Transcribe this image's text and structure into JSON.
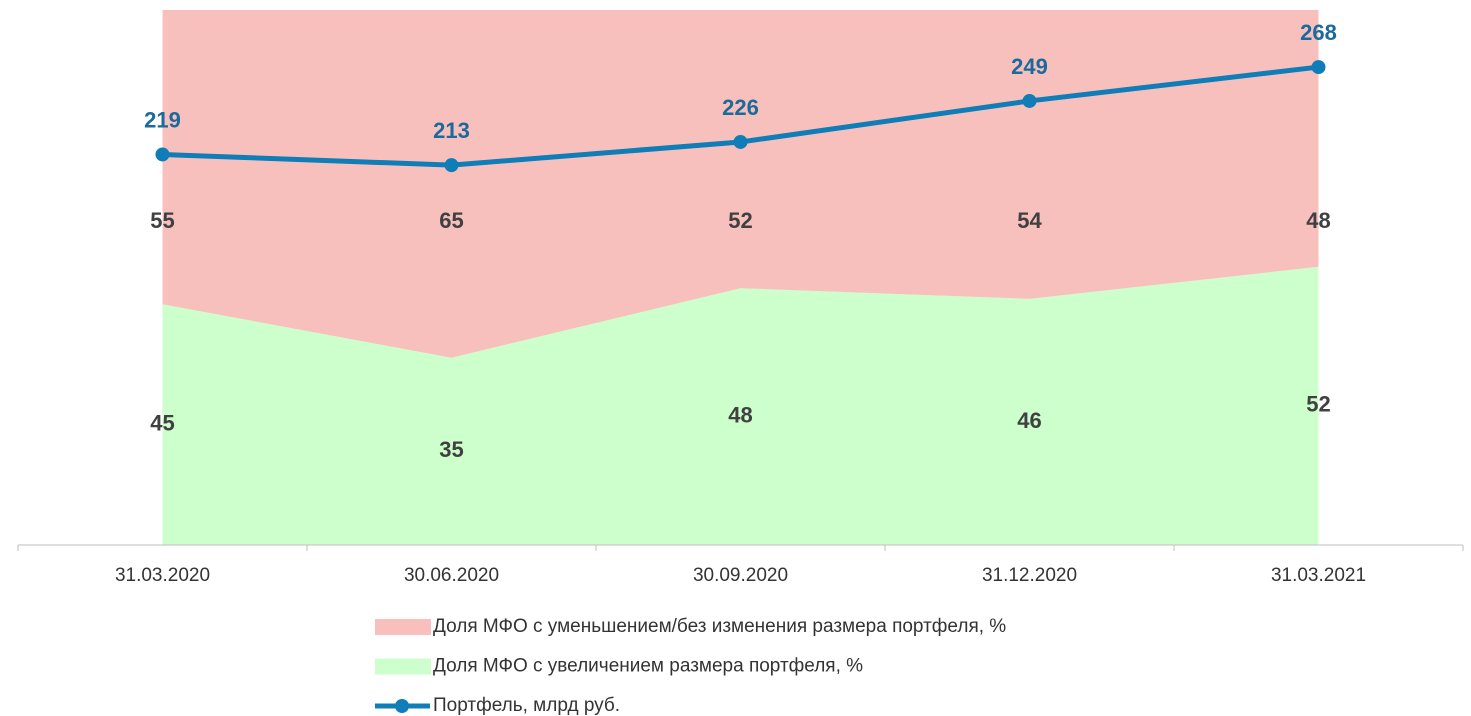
{
  "chart_data": {
    "type": "area",
    "categories": [
      "31.03.2020",
      "30.06.2020",
      "30.09.2020",
      "31.12.2020",
      "31.03.2021"
    ],
    "stacked": true,
    "ylim": [
      0,
      100
    ],
    "y2lim": [
      0,
      300
    ],
    "series": [
      {
        "name": "Доля МФО с увеличением размера портфеля, %",
        "color": "#ccffcc",
        "values": [
          45,
          35,
          48,
          46,
          52
        ]
      },
      {
        "name": "Доля МФО с уменьшением/без изменения размера портфеля, %",
        "color": "#f8c0bd",
        "values": [
          55,
          65,
          52,
          54,
          48
        ]
      },
      {
        "name": "Портфель, млрд руб.",
        "color": "#0e7db8",
        "type": "line",
        "axis": "y2",
        "values": [
          219,
          213,
          226,
          249,
          268
        ]
      }
    ],
    "legend_order": [
      1,
      0,
      2
    ]
  }
}
